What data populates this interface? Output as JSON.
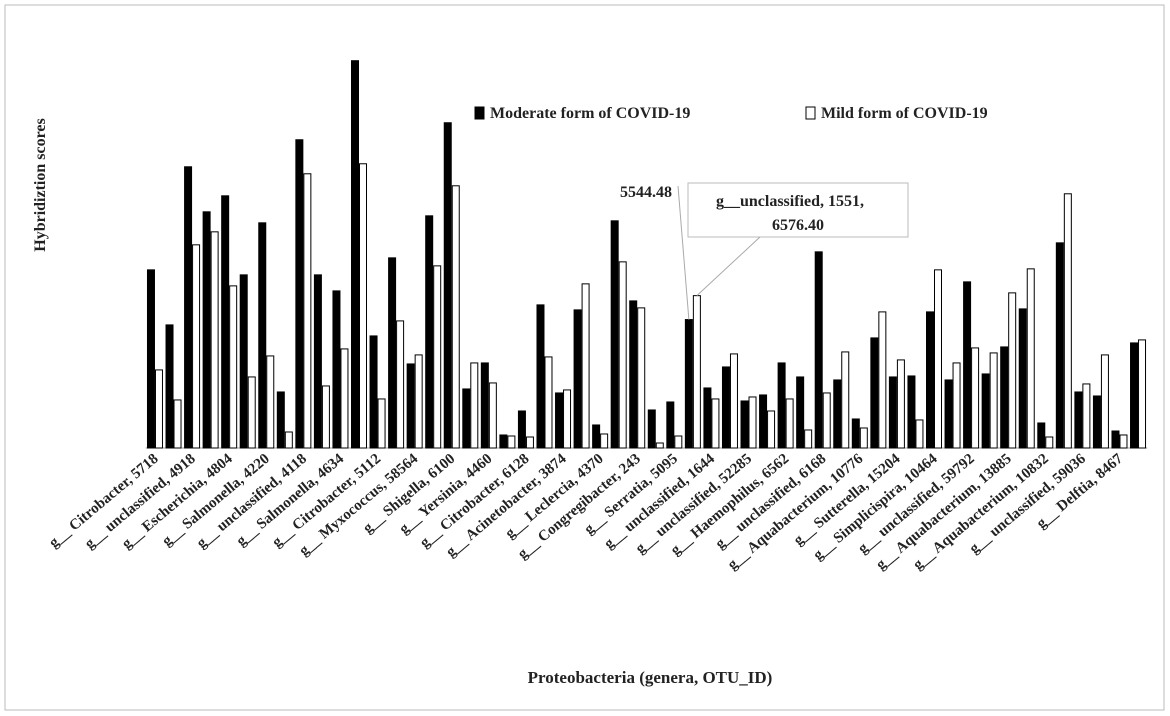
{
  "chart_data": {
    "type": "bar",
    "ylabel": "Hybridiztion  scores",
    "xlabel": "Proteobacteria (genera, OTU_ID)",
    "categories": [
      "g__ Citrobacter, 5718",
      null,
      "g__ unclassified, 4918",
      null,
      "g__ Escherichia, 4804",
      null,
      "g__ Salmonella, 4220",
      null,
      "g__ unclassified, 4118",
      null,
      "g__ Salmonella, 4634",
      null,
      "g__ Citrobacter, 5112",
      null,
      "g__ Myxococcus, 58564",
      null,
      "g__ Shigella, 6100",
      null,
      "g__ Yersinia, 4460",
      null,
      "g__ Citrobacter, 6128",
      null,
      "g__ Acinetobacter, 3874",
      null,
      "g__ Leclercia, 4370",
      null,
      "g__ Congregibacter, 243",
      null,
      "g__ Serratia, 5095",
      null,
      "g__ unclassified, 1644",
      null,
      "g__ unclassified, 52285",
      null,
      "g__ Haemophilus, 6562",
      null,
      "g__ unclassified, 6168",
      null,
      "g__ Aquabacterium, 10776",
      null,
      "g__ Sutterella, 15204",
      null,
      "g__ Simplicispira, 10464",
      null,
      "g__ unclassified, 59792",
      null,
      "g__ Aquabacterium, 13885",
      null,
      "g__ Aquabacterium, 10832",
      null,
      "g__ unclassified, 59036",
      null,
      "g__ Delftia, 8467",
      null
    ],
    "series": [
      {
        "name": "Moderate form of COVID-19",
        "color": "#000000",
        "values": [
          7690,
          5314,
          12139,
          10195,
          10886,
          7474,
          9720,
          2419,
          13306,
          7474,
          6782,
          16718,
          4838,
          8208,
          3629,
          10022,
          14040,
          2549,
          3672,
          562,
          1598,
          6178,
          2376,
          5962,
          994,
          9806,
          6350,
          1642,
          1987,
          5544.48,
          2592,
          3499,
          2030,
          2290,
          3672,
          3067,
          8467,
          2938,
          1253,
          4752,
          3067,
          3110,
          5875,
          2938,
          7171,
          3197,
          4363,
          6005,
          1080,
          8856,
          2419,
          2246,
          734,
          4536
        ]
      },
      {
        "name": "Mild form of COVID-19",
        "color": "#ffffff",
        "values": [
          3370,
          2074,
          8770,
          9331,
          6998,
          3067,
          3974,
          691,
          11837,
          2678,
          4277,
          12269,
          2117,
          5486,
          4018,
          7862,
          11318,
          3672,
          2808,
          518,
          475,
          3931,
          2506,
          7085,
          605,
          8035,
          6048,
          216,
          518,
          6576.4,
          2117,
          4061,
          2203,
          1598,
          2117,
          778,
          2376,
          4147,
          864,
          5875,
          3802,
          1210,
          7690,
          3672,
          4320,
          4104,
          6696,
          7733,
          475,
          10973,
          2765,
          4018,
          562,
          4666
        ]
      }
    ],
    "annotations": [
      {
        "text": "5544.48",
        "series": 0,
        "index": 29
      },
      {
        "lines": [
          "g__unclassified,  1551,",
          "6576.40"
        ],
        "series": 1,
        "index": 29
      }
    ],
    "ylim": [
      0,
      18000
    ],
    "legend": "top-right"
  }
}
